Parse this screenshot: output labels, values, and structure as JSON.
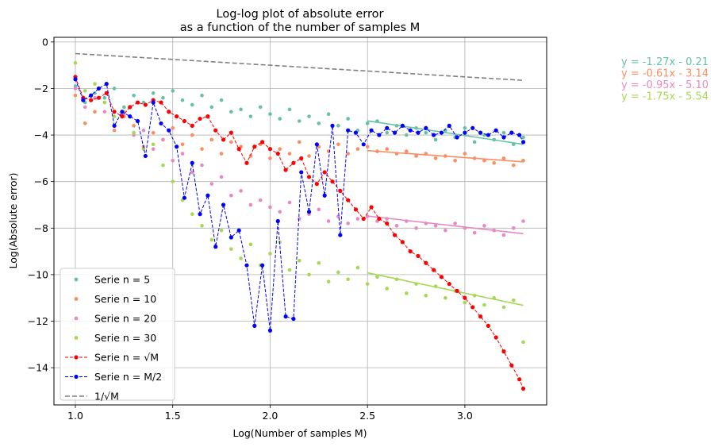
{
  "chart_data": {
    "type": "scatter",
    "title": [
      "Log-log plot of absolute error",
      "as a function of the number of samples M"
    ],
    "xlabel": "Log(Number of samples M)",
    "ylabel": "Log(Absolute error)",
    "xlim": [
      0.89,
      3.42
    ],
    "ylim": [
      -15.6,
      0.2
    ],
    "xticks": [
      "1.0",
      "1.5",
      "2.0",
      "2.5",
      "3.0"
    ],
    "yticks": [
      "0",
      "−2",
      "−4",
      "−6",
      "−8",
      "−10",
      "−12",
      "−14"
    ],
    "xtick_values": [
      1.0,
      1.5,
      2.0,
      2.5,
      3.0
    ],
    "ytick_values": [
      0,
      -2,
      -4,
      -6,
      -8,
      -10,
      -12,
      -14
    ],
    "grid": true,
    "legend_position": "bottom-left",
    "legend": [
      {
        "label": "Serie n = 5",
        "kind": "scatter",
        "color": "#66c2a5"
      },
      {
        "label": "Serie n = 10",
        "kind": "scatter",
        "color": "#fc8d62"
      },
      {
        "label": "Serie n = 20",
        "kind": "scatter",
        "color": "#e78ac3"
      },
      {
        "label": "Serie n = 30",
        "kind": "scatter",
        "color": "#a6d854"
      },
      {
        "label": "Serie n = √M",
        "kind": "line-marker",
        "color": "#ff0000"
      },
      {
        "label": "Serie n = M/2",
        "kind": "line-marker",
        "color": "#0000ff"
      },
      {
        "label": "1/√M",
        "kind": "dashed",
        "color": "#808080"
      }
    ],
    "fit_annotations": [
      {
        "text": "y = -1.27x - 0.21",
        "color": "#66c2a5"
      },
      {
        "text": "y = -0.61x - 3.14",
        "color": "#fc8d62"
      },
      {
        "text": "y = -0.95x - 5.10",
        "color": "#e78ac3"
      },
      {
        "text": "y = -1.75x - 5.54",
        "color": "#a6d854"
      }
    ],
    "fit_lines": [
      {
        "series": "Serie n = 5",
        "color": "#66c2a5",
        "x": [
          2.5,
          3.3
        ],
        "y": [
          -3.39,
          -4.4
        ]
      },
      {
        "series": "Serie n = 10",
        "color": "#fc8d62",
        "x": [
          2.5,
          3.3
        ],
        "y": [
          -4.67,
          -5.15
        ]
      },
      {
        "series": "Serie n = 20",
        "color": "#e78ac3",
        "x": [
          2.5,
          3.3
        ],
        "y": [
          -7.48,
          -8.24
        ]
      },
      {
        "series": "Serie n = 30",
        "color": "#a6d854",
        "x": [
          2.5,
          3.3
        ],
        "y": [
          -9.92,
          -11.32
        ]
      }
    ],
    "reference_line": {
      "label": "1/√M",
      "color": "#808080",
      "x": [
        1.0,
        3.3
      ],
      "y": [
        -0.5,
        -1.65
      ]
    },
    "series": [
      {
        "name": "Serie n = √M",
        "kind": "line-marker",
        "color": "#ff0000",
        "x": [
          1.0,
          1.04,
          1.08,
          1.12,
          1.16,
          1.2,
          1.24,
          1.28,
          1.32,
          1.36,
          1.4,
          1.44,
          1.48,
          1.52,
          1.56,
          1.6,
          1.64,
          1.68,
          1.72,
          1.76,
          1.8,
          1.84,
          1.88,
          1.92,
          1.96,
          2.0,
          2.04,
          2.08,
          2.12,
          2.16,
          2.2,
          2.24,
          2.28,
          2.32,
          2.36,
          2.4,
          2.44,
          2.48,
          2.52,
          2.56,
          2.6,
          2.64,
          2.68,
          2.72,
          2.76,
          2.8,
          2.84,
          2.88,
          2.92,
          2.96,
          3.0,
          3.04,
          3.08,
          3.12,
          3.16,
          3.2,
          3.24,
          3.28,
          3.3
        ],
        "y": [
          -1.5,
          -2.4,
          -2.5,
          -2.4,
          -2.2,
          -3.0,
          -3.2,
          -2.8,
          -2.6,
          -2.7,
          -2.5,
          -2.6,
          -3.0,
          -3.2,
          -3.4,
          -3.6,
          -3.3,
          -3.2,
          -3.8,
          -4.2,
          -3.9,
          -4.6,
          -5.2,
          -4.5,
          -4.3,
          -4.6,
          -4.8,
          -5.5,
          -5.2,
          -5.0,
          -5.8,
          -6.1,
          -5.6,
          -6.0,
          -6.4,
          -6.8,
          -7.2,
          -7.6,
          -7.1,
          -7.6,
          -7.8,
          -8.3,
          -8.6,
          -9.0,
          -9.2,
          -9.5,
          -9.8,
          -10.1,
          -10.4,
          -10.7,
          -11.0,
          -11.4,
          -11.8,
          -12.2,
          -12.7,
          -13.3,
          -13.9,
          -14.5,
          -14.9
        ]
      },
      {
        "name": "Serie n = M/2",
        "kind": "line-marker",
        "color": "#0000ff",
        "x": [
          1.0,
          1.04,
          1.08,
          1.12,
          1.16,
          1.2,
          1.24,
          1.28,
          1.32,
          1.36,
          1.4,
          1.44,
          1.48,
          1.52,
          1.56,
          1.6,
          1.64,
          1.68,
          1.72,
          1.76,
          1.8,
          1.84,
          1.88,
          1.92,
          1.96,
          2.0,
          2.04,
          2.08,
          2.12,
          2.16,
          2.2,
          2.24,
          2.28,
          2.32,
          2.36,
          2.4,
          2.44,
          2.48,
          2.52,
          2.56,
          2.6,
          2.64,
          2.68,
          2.72,
          2.76,
          2.8,
          2.84,
          2.88,
          2.92,
          2.96,
          3.0,
          3.04,
          3.08,
          3.12,
          3.16,
          3.2,
          3.24,
          3.28,
          3.3
        ],
        "y": [
          -1.6,
          -2.5,
          -2.3,
          -2.0,
          -1.8,
          -3.6,
          -3.0,
          -3.2,
          -3.4,
          -4.9,
          -2.6,
          -3.5,
          -3.8,
          -4.5,
          -6.7,
          -5.2,
          -7.4,
          -6.6,
          -8.8,
          -7.0,
          -8.4,
          -8.1,
          -9.6,
          -12.2,
          -9.6,
          -12.4,
          -7.7,
          -11.8,
          -11.9,
          -5.6,
          -7.3,
          -4.4,
          -6.6,
          -3.6,
          -8.3,
          -3.8,
          -3.9,
          -4.4,
          -3.8,
          -4.0,
          -3.7,
          -3.9,
          -3.6,
          -3.8,
          -3.9,
          -3.7,
          -4.0,
          -3.9,
          -3.6,
          -4.1,
          -3.9,
          -3.7,
          -3.9,
          -4.0,
          -3.8,
          -4.1,
          -3.9,
          -4.0,
          -4.3
        ]
      },
      {
        "name": "Serie n = 5",
        "kind": "scatter",
        "color": "#66c2a5",
        "x": [
          1.0,
          1.05,
          1.1,
          1.15,
          1.2,
          1.25,
          1.3,
          1.35,
          1.4,
          1.45,
          1.5,
          1.55,
          1.6,
          1.65,
          1.7,
          1.75,
          1.8,
          1.85,
          1.9,
          1.95,
          2.0,
          2.05,
          2.1,
          2.15,
          2.2,
          2.25,
          2.3,
          2.35,
          2.4,
          2.45,
          2.5,
          2.55,
          2.6,
          2.65,
          2.7,
          2.75,
          2.8,
          2.85,
          2.9,
          2.95,
          3.0,
          3.05,
          3.1,
          3.15,
          3.2,
          3.25,
          3.3
        ],
        "y": [
          -1.9,
          -2.6,
          -2.2,
          -2.4,
          -2.0,
          -2.8,
          -2.3,
          -2.6,
          -2.2,
          -2.4,
          -2.1,
          -2.5,
          -2.7,
          -2.3,
          -2.8,
          -2.5,
          -3.0,
          -2.9,
          -3.2,
          -2.8,
          -3.1,
          -3.3,
          -2.9,
          -3.4,
          -3.2,
          -3.5,
          -3.1,
          -3.6,
          -3.3,
          -3.8,
          -3.5,
          -3.4,
          -3.9,
          -3.6,
          -4.0,
          -3.7,
          -3.9,
          -4.2,
          -3.8,
          -4.1,
          -3.7,
          -4.3,
          -4.0,
          -4.2,
          -3.9,
          -4.4,
          -4.1
        ]
      },
      {
        "name": "Serie n = 10",
        "kind": "scatter",
        "color": "#fc8d62",
        "x": [
          1.0,
          1.05,
          1.1,
          1.15,
          1.2,
          1.25,
          1.3,
          1.35,
          1.4,
          1.45,
          1.5,
          1.55,
          1.6,
          1.65,
          1.7,
          1.75,
          1.8,
          1.85,
          1.9,
          1.95,
          2.0,
          2.05,
          2.1,
          2.15,
          2.2,
          2.25,
          2.3,
          2.35,
          2.4,
          2.45,
          2.5,
          2.55,
          2.6,
          2.65,
          2.7,
          2.75,
          2.8,
          2.85,
          2.9,
          2.95,
          3.0,
          3.05,
          3.1,
          3.15,
          3.2,
          3.25,
          3.3
        ],
        "y": [
          -2.3,
          -3.5,
          -3.0,
          -2.6,
          -3.8,
          -3.2,
          -3.6,
          -4.5,
          -3.9,
          -4.2,
          -3.7,
          -4.4,
          -4.0,
          -4.6,
          -4.2,
          -4.8,
          -4.3,
          -4.5,
          -4.9,
          -4.4,
          -5.0,
          -4.6,
          -4.8,
          -4.3,
          -4.9,
          -4.5,
          -4.7,
          -4.4,
          -4.8,
          -4.6,
          -4.5,
          -4.7,
          -4.6,
          -4.8,
          -4.7,
          -4.9,
          -4.8,
          -5.0,
          -4.9,
          -5.1,
          -4.8,
          -5.0,
          -5.1,
          -5.2,
          -5.0,
          -5.3,
          -5.1
        ]
      },
      {
        "name": "Serie n = 20",
        "kind": "scatter",
        "color": "#e78ac3",
        "x": [
          1.0,
          1.05,
          1.1,
          1.15,
          1.2,
          1.25,
          1.3,
          1.35,
          1.4,
          1.45,
          1.5,
          1.55,
          1.6,
          1.65,
          1.7,
          1.75,
          1.8,
          1.85,
          1.9,
          1.95,
          2.0,
          2.05,
          2.1,
          2.15,
          2.2,
          2.25,
          2.3,
          2.35,
          2.4,
          2.45,
          2.5,
          2.55,
          2.6,
          2.65,
          2.7,
          2.75,
          2.8,
          2.85,
          2.9,
          2.95,
          3.0,
          3.05,
          3.1,
          3.15,
          3.2,
          3.25,
          3.3
        ],
        "y": [
          -2.0,
          -2.8,
          -2.4,
          -3.0,
          -3.6,
          -3.1,
          -4.0,
          -3.8,
          -4.6,
          -4.2,
          -5.1,
          -4.8,
          -5.6,
          -5.3,
          -6.1,
          -5.8,
          -6.6,
          -6.4,
          -7.0,
          -6.8,
          -7.1,
          -7.3,
          -6.9,
          -7.6,
          -7.4,
          -7.2,
          -7.7,
          -7.5,
          -7.8,
          -7.6,
          -7.5,
          -7.7,
          -7.6,
          -7.9,
          -7.7,
          -8.0,
          -7.8,
          -7.9,
          -8.1,
          -7.8,
          -8.0,
          -8.2,
          -7.9,
          -8.1,
          -8.3,
          -8.0,
          -7.7
        ]
      },
      {
        "name": "Serie n = 30",
        "kind": "scatter",
        "color": "#a6d854",
        "x": [
          1.0,
          1.05,
          1.1,
          1.15,
          1.2,
          1.25,
          1.3,
          1.35,
          1.4,
          1.45,
          1.5,
          1.55,
          1.6,
          1.65,
          1.7,
          1.75,
          1.8,
          1.85,
          1.9,
          1.95,
          2.0,
          2.05,
          2.1,
          2.15,
          2.2,
          2.25,
          2.3,
          2.35,
          2.4,
          2.45,
          2.5,
          2.55,
          2.6,
          2.65,
          2.7,
          2.75,
          2.8,
          2.85,
          2.9,
          2.95,
          3.0,
          3.05,
          3.1,
          3.15,
          3.2,
          3.25,
          3.3
        ],
        "y": [
          -0.9,
          -2.1,
          -1.8,
          -2.6,
          -3.2,
          -3.0,
          -3.9,
          -4.6,
          -4.4,
          -5.3,
          -6.0,
          -6.8,
          -7.4,
          -7.9,
          -8.5,
          -8.1,
          -8.9,
          -9.3,
          -8.7,
          -9.6,
          -9.1,
          -8.6,
          -9.8,
          -9.4,
          -10.0,
          -9.5,
          -10.3,
          -9.9,
          -10.2,
          -9.7,
          -10.4,
          -10.1,
          -10.6,
          -10.2,
          -10.8,
          -10.4,
          -10.9,
          -10.5,
          -11.0,
          -10.7,
          -11.2,
          -10.9,
          -11.3,
          -11.0,
          -11.4,
          -11.1,
          -12.9
        ]
      }
    ]
  }
}
